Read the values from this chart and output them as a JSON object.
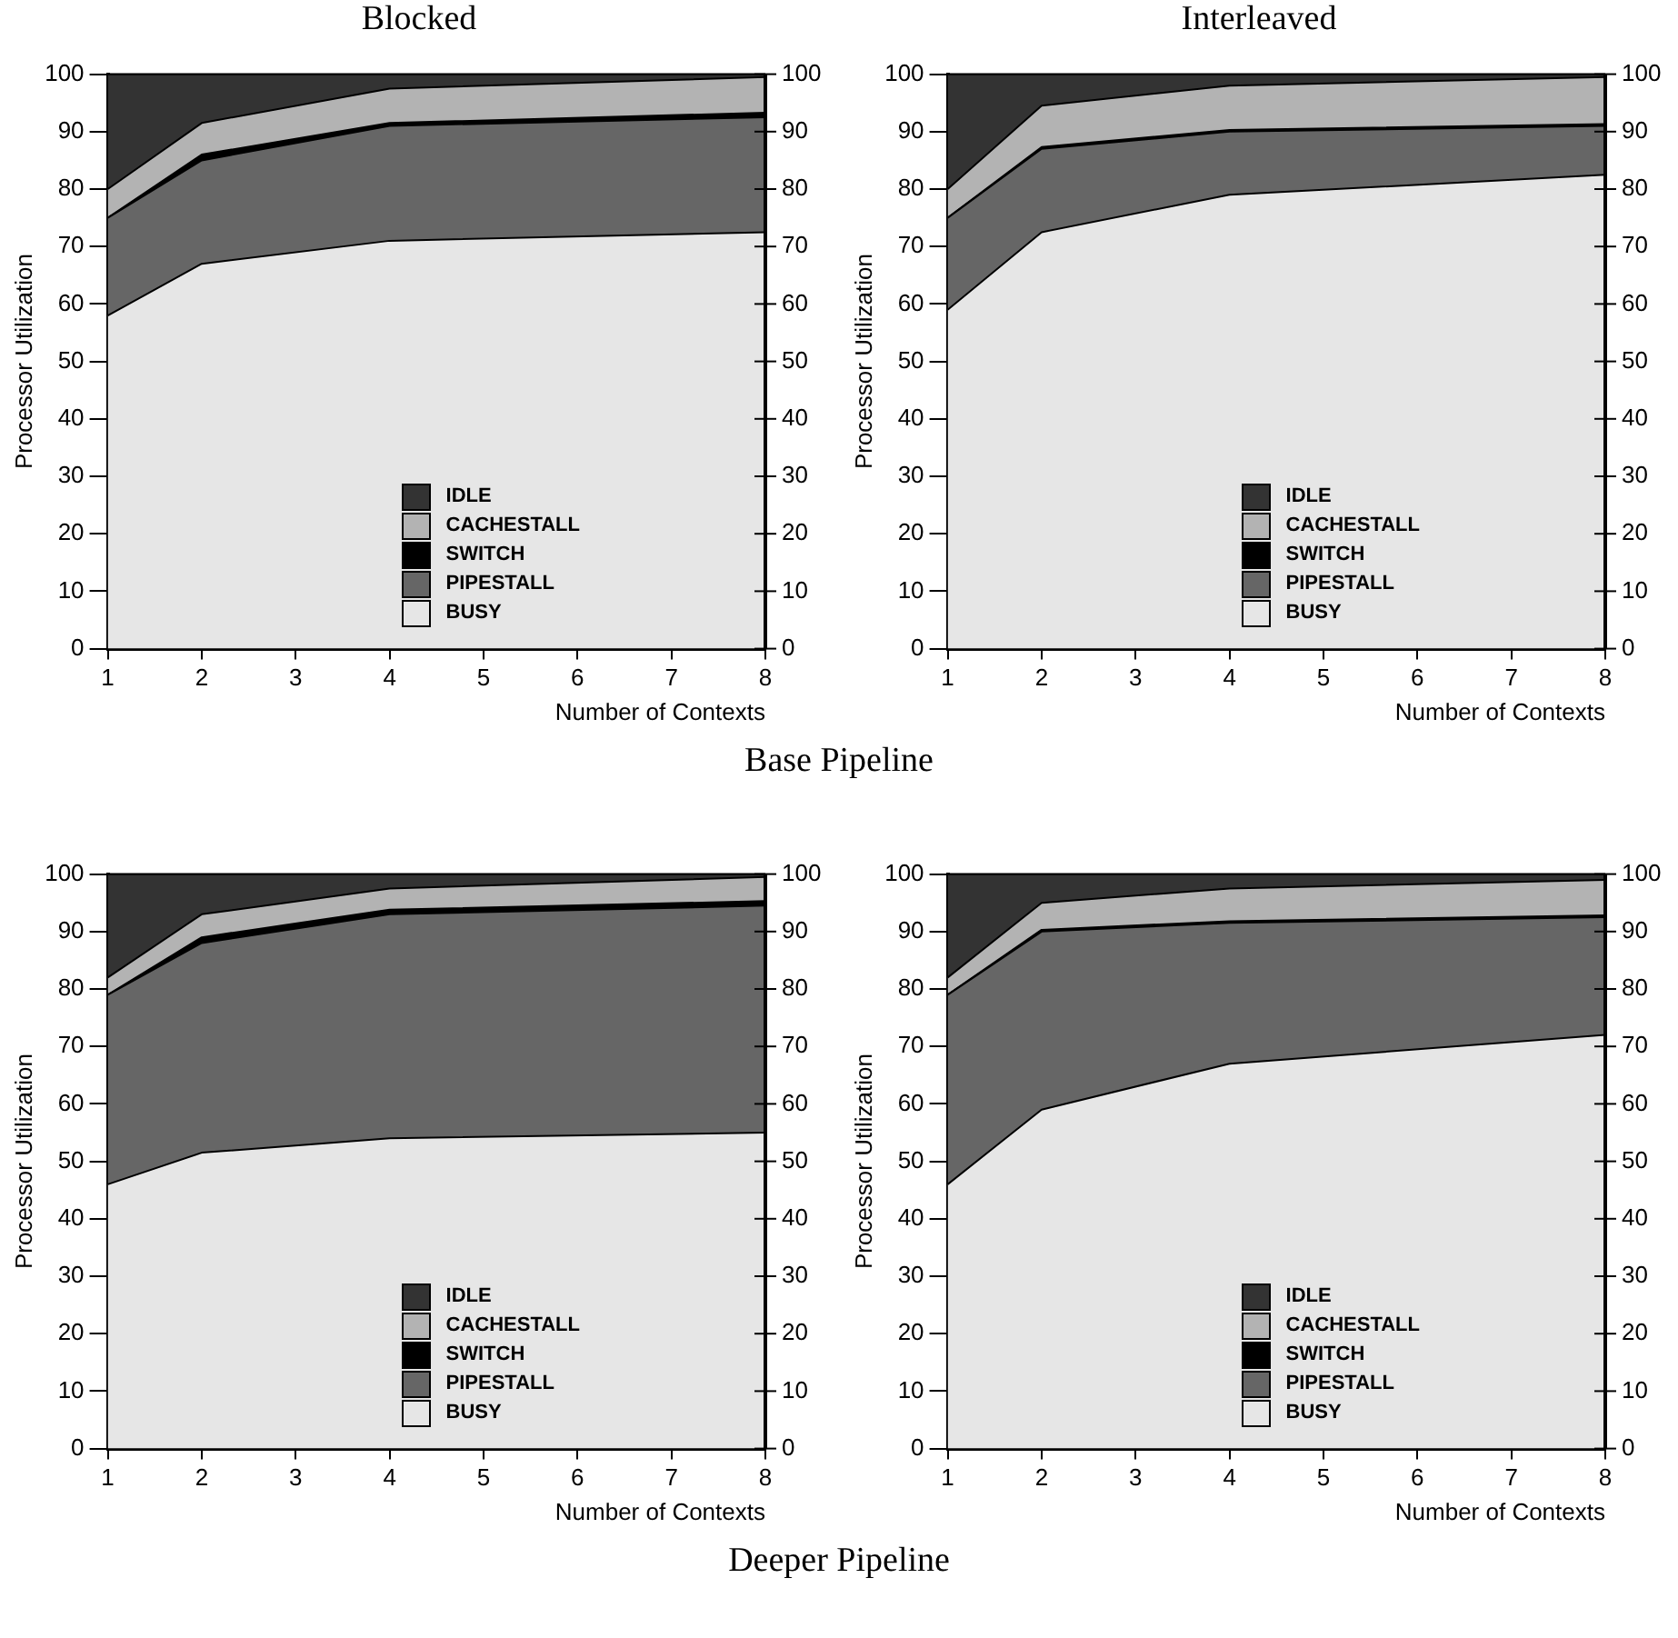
{
  "chart_data": [
    {
      "type": "area",
      "title": "Blocked",
      "xlabel": "Number of Contexts",
      "ylabel": "Processor Utilization",
      "x": [
        1,
        2,
        4,
        8
      ],
      "xlim": [
        1,
        8
      ],
      "xticks": [
        1,
        2,
        3,
        4,
        5,
        6,
        7,
        8
      ],
      "ylim": [
        0,
        100
      ],
      "yticks": [
        0,
        10,
        20,
        30,
        40,
        50,
        60,
        70,
        80,
        90,
        100
      ],
      "y2lim": [
        0,
        100
      ],
      "y2ticks": [
        0,
        10,
        20,
        30,
        40,
        50,
        60,
        70,
        80,
        90,
        100
      ],
      "stacked": true,
      "legend": "bottom",
      "annotations": [
        "Base Pipeline"
      ],
      "series": [
        {
          "name": "BUSY",
          "color": "#e6e6e6",
          "values": [
            58,
            67,
            71,
            72.5
          ]
        },
        {
          "name": "PIPESTALL",
          "color": "#666666",
          "values": [
            17,
            18,
            20,
            20
          ]
        },
        {
          "name": "SWITCH",
          "color": "#000000",
          "values": [
            0,
            1,
            0.5,
            0.8
          ]
        },
        {
          "name": "CACHESTALL",
          "color": "#b3b3b3",
          "values": [
            5,
            5.5,
            6,
            6.2
          ]
        },
        {
          "name": "IDLE",
          "color": "#333333",
          "values": [
            20,
            8.5,
            2.5,
            0.5
          ]
        }
      ]
    },
    {
      "type": "area",
      "title": "Interleaved",
      "xlabel": "Number of Contexts",
      "ylabel": "Processor Utilization",
      "x": [
        1,
        2,
        4,
        8
      ],
      "xlim": [
        1,
        8
      ],
      "xticks": [
        1,
        2,
        3,
        4,
        5,
        6,
        7,
        8
      ],
      "ylim": [
        0,
        100
      ],
      "yticks": [
        0,
        10,
        20,
        30,
        40,
        50,
        60,
        70,
        80,
        90,
        100
      ],
      "y2lim": [
        0,
        100
      ],
      "y2ticks": [
        0,
        10,
        20,
        30,
        40,
        50,
        60,
        70,
        80,
        90,
        100
      ],
      "stacked": true,
      "legend": "bottom",
      "series": [
        {
          "name": "BUSY",
          "color": "#e6e6e6",
          "values": [
            59,
            72.5,
            79,
            82.5
          ]
        },
        {
          "name": "PIPESTALL",
          "color": "#666666",
          "values": [
            16,
            14.5,
            11,
            8.5
          ]
        },
        {
          "name": "SWITCH",
          "color": "#000000",
          "values": [
            0,
            0.3,
            0.3,
            0.3
          ]
        },
        {
          "name": "CACHESTALL",
          "color": "#b3b3b3",
          "values": [
            5,
            7.2,
            7.7,
            8.2
          ]
        },
        {
          "name": "IDLE",
          "color": "#333333",
          "values": [
            20,
            5.5,
            2,
            0.5
          ]
        }
      ]
    },
    {
      "type": "area",
      "xlabel": "Number of Contexts",
      "ylabel": "Processor Utilization",
      "x": [
        1,
        2,
        4,
        8
      ],
      "xlim": [
        1,
        8
      ],
      "xticks": [
        1,
        2,
        3,
        4,
        5,
        6,
        7,
        8
      ],
      "ylim": [
        0,
        100
      ],
      "yticks": [
        0,
        10,
        20,
        30,
        40,
        50,
        60,
        70,
        80,
        90,
        100
      ],
      "y2lim": [
        0,
        100
      ],
      "y2ticks": [
        0,
        10,
        20,
        30,
        40,
        50,
        60,
        70,
        80,
        90,
        100
      ],
      "stacked": true,
      "legend": "bottom",
      "annotations": [
        "Deeper Pipeline"
      ],
      "series": [
        {
          "name": "BUSY",
          "color": "#e6e6e6",
          "values": [
            46,
            51.5,
            54,
            55
          ]
        },
        {
          "name": "PIPESTALL",
          "color": "#666666",
          "values": [
            33,
            36.5,
            39,
            39.5
          ]
        },
        {
          "name": "SWITCH",
          "color": "#000000",
          "values": [
            0,
            1,
            0.8,
            0.8
          ]
        },
        {
          "name": "CACHESTALL",
          "color": "#b3b3b3",
          "values": [
            3,
            4,
            3.7,
            4.2
          ]
        },
        {
          "name": "IDLE",
          "color": "#333333",
          "values": [
            18,
            7,
            2.5,
            0.5
          ]
        }
      ]
    },
    {
      "type": "area",
      "xlabel": "Number of Contexts",
      "ylabel": "Processor Utilization",
      "x": [
        1,
        2,
        4,
        8
      ],
      "xlim": [
        1,
        8
      ],
      "xticks": [
        1,
        2,
        3,
        4,
        5,
        6,
        7,
        8
      ],
      "ylim": [
        0,
        100
      ],
      "yticks": [
        0,
        10,
        20,
        30,
        40,
        50,
        60,
        70,
        80,
        90,
        100
      ],
      "y2lim": [
        0,
        100
      ],
      "y2ticks": [
        0,
        10,
        20,
        30,
        40,
        50,
        60,
        70,
        80,
        90,
        100
      ],
      "stacked": true,
      "legend": "bottom",
      "series": [
        {
          "name": "BUSY",
          "color": "#e6e6e6",
          "values": [
            46,
            59,
            67,
            72
          ]
        },
        {
          "name": "PIPESTALL",
          "color": "#666666",
          "values": [
            33,
            31,
            24.5,
            20.5
          ]
        },
        {
          "name": "SWITCH",
          "color": "#000000",
          "values": [
            0,
            0.3,
            0.3,
            0.3
          ]
        },
        {
          "name": "CACHESTALL",
          "color": "#b3b3b3",
          "values": [
            3,
            4.7,
            5.7,
            6.2
          ]
        },
        {
          "name": "IDLE",
          "color": "#333333",
          "values": [
            18,
            5,
            2.5,
            1
          ]
        }
      ]
    }
  ]
}
